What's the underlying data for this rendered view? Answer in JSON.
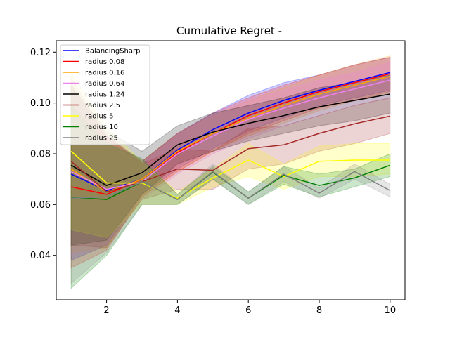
{
  "chart_data": {
    "type": "line",
    "title": "Cumulative Regret -",
    "xlabel": "",
    "ylabel": "",
    "xlim": [
      0.58,
      10.42
    ],
    "ylim": [
      0.0225,
      0.1245
    ],
    "x_ticks": [
      2,
      4,
      6,
      8,
      10
    ],
    "y_ticks": [
      0.04,
      0.06,
      0.08,
      0.1,
      0.12
    ],
    "y_tick_labels": [
      "0.04",
      "0.06",
      "0.08",
      "0.10",
      "0.12"
    ],
    "grid": false,
    "legend_position": "upper-left",
    "x": [
      1,
      2,
      3,
      4,
      5,
      6,
      7,
      8,
      9,
      10
    ],
    "series": [
      {
        "name": "BalancingSharp",
        "color": "#0000ff",
        "values": [
          0.072,
          0.0655,
          0.07,
          0.0815,
          0.0895,
          0.096,
          0.101,
          0.105,
          0.1085,
          0.112
        ],
        "lower": [
          0.038,
          0.044,
          0.064,
          0.074,
          0.082,
          0.089,
          0.094,
          0.099,
          0.102,
          0.105
        ],
        "upper": [
          0.106,
          0.087,
          0.077,
          0.088,
          0.096,
          0.103,
          0.108,
          0.111,
          0.115,
          0.118
        ]
      },
      {
        "name": "radius 0.08",
        "color": "#ff0000",
        "values": [
          0.067,
          0.064,
          0.07,
          0.0805,
          0.088,
          0.095,
          0.1,
          0.1045,
          0.108,
          0.1115
        ],
        "lower": [
          0.035,
          0.042,
          0.063,
          0.073,
          0.081,
          0.088,
          0.093,
          0.098,
          0.101,
          0.1045
        ],
        "upper": [
          0.099,
          0.086,
          0.077,
          0.088,
          0.096,
          0.102,
          0.107,
          0.111,
          0.115,
          0.118
        ]
      },
      {
        "name": "radius 0.16",
        "color": "#ffa500",
        "values": [
          0.074,
          0.065,
          0.07,
          0.081,
          0.088,
          0.094,
          0.099,
          0.1035,
          0.107,
          0.1105
        ],
        "lower": [
          0.041,
          0.043,
          0.063,
          0.073,
          0.081,
          0.087,
          0.092,
          0.097,
          0.101,
          0.104
        ],
        "upper": [
          0.107,
          0.087,
          0.077,
          0.088,
          0.095,
          0.101,
          0.106,
          0.111,
          0.115,
          0.1185
        ]
      },
      {
        "name": "radius 0.64",
        "color": "#ee82ee",
        "values": [
          0.073,
          0.066,
          0.069,
          0.08,
          0.087,
          0.0935,
          0.098,
          0.102,
          0.1055,
          0.109
        ],
        "lower": [
          0.04,
          0.044,
          0.062,
          0.072,
          0.08,
          0.086,
          0.091,
          0.095,
          0.099,
          0.102
        ],
        "upper": [
          0.106,
          0.088,
          0.076,
          0.088,
          0.095,
          0.101,
          0.105,
          0.109,
          0.112,
          0.116
        ]
      },
      {
        "name": "radius 1.24",
        "color": "#000000",
        "values": [
          0.0755,
          0.0675,
          0.0725,
          0.0835,
          0.0885,
          0.092,
          0.095,
          0.0985,
          0.101,
          0.1035
        ],
        "lower": [
          0.044,
          0.046,
          0.064,
          0.076,
          0.081,
          0.085,
          0.088,
          0.091,
          0.093,
          0.096
        ],
        "upper": [
          0.107,
          0.089,
          0.081,
          0.091,
          0.096,
          0.099,
          0.102,
          0.106,
          0.108,
          0.111
        ]
      },
      {
        "name": "radius 2.5",
        "color": "#a52a2a",
        "values": [
          0.077,
          0.065,
          0.069,
          0.074,
          0.0735,
          0.082,
          0.0835,
          0.088,
          0.0918,
          0.0948
        ],
        "lower": [
          0.044,
          0.043,
          0.062,
          0.066,
          0.066,
          0.074,
          0.076,
          0.081,
          0.084,
          0.088
        ],
        "upper": [
          0.11,
          0.087,
          0.076,
          0.082,
          0.081,
          0.09,
          0.091,
          0.095,
          0.099,
          0.102
        ]
      },
      {
        "name": "radius 5",
        "color": "#ffff00",
        "values": [
          0.081,
          0.0685,
          0.0685,
          0.0625,
          0.0705,
          0.0775,
          0.071,
          0.077,
          0.0775,
          0.0775
        ],
        "lower": [
          0.05,
          0.047,
          0.06,
          0.06,
          0.067,
          0.071,
          0.066,
          0.071,
          0.071,
          0.072
        ],
        "upper": [
          0.112,
          0.09,
          0.077,
          0.065,
          0.074,
          0.084,
          0.076,
          0.083,
          0.084,
          0.084
        ]
      },
      {
        "name": "radius 10",
        "color": "#008000",
        "values": [
          0.0628,
          0.062,
          0.069,
          0.062,
          0.0728,
          0.0625,
          0.0715,
          0.0675,
          0.0705,
          0.0755
        ],
        "lower": [
          0.027,
          0.04,
          0.06,
          0.06,
          0.07,
          0.06,
          0.068,
          0.063,
          0.067,
          0.071
        ],
        "upper": [
          0.099,
          0.084,
          0.078,
          0.064,
          0.075,
          0.065,
          0.075,
          0.072,
          0.074,
          0.08
        ]
      },
      {
        "name": "radius 25",
        "color": "#808080",
        "values": [
          0.0625,
          0.063,
          0.069,
          0.062,
          0.073,
          0.0625,
          0.072,
          0.0645,
          0.073,
          0.0655
        ],
        "lower": [
          0.029,
          0.041,
          0.06,
          0.06,
          0.07,
          0.06,
          0.069,
          0.0625,
          0.07,
          0.063
        ],
        "upper": [
          0.096,
          0.085,
          0.078,
          0.064,
          0.076,
          0.065,
          0.075,
          0.0665,
          0.076,
          0.068
        ]
      }
    ]
  }
}
